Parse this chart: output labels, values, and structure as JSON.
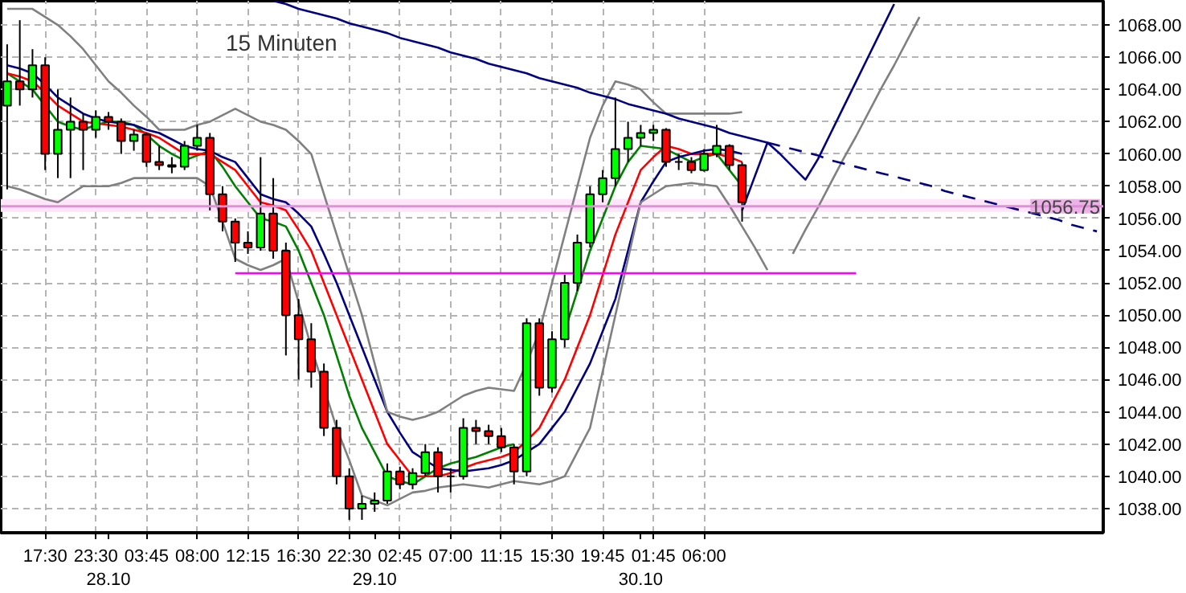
{
  "chart_data": {
    "type": "candlestick",
    "title": "15 Minuten",
    "categories": [
      null,
      null,
      null,
      "17:30",
      null,
      null,
      null,
      "23:30",
      "\n28.10",
      null,
      null,
      "03:45",
      null,
      null,
      null,
      "08:00",
      null,
      null,
      null,
      "12:15",
      null,
      null,
      null,
      "16:30",
      null,
      null,
      null,
      "22:30",
      null,
      "\n29.10",
      null,
      "02:45",
      null,
      null,
      null,
      "07:00",
      null,
      null,
      null,
      "11:15",
      null,
      null,
      null,
      "15:30",
      null,
      null,
      null,
      "19:45",
      null,
      null,
      "\n30.10",
      "01:45",
      null,
      null,
      null,
      "06:00",
      null,
      null,
      null,
      null,
      null,
      null,
      null,
      null,
      null,
      null,
      null,
      null,
      null,
      null,
      null,
      null,
      null,
      null,
      null,
      null,
      null,
      null,
      null,
      null,
      null,
      null,
      null,
      null,
      null,
      null,
      null
    ],
    "ohlc": [
      [
        1063,
        1066.8,
        1057.8,
        1064.5
      ],
      [
        1064.5,
        1068.3,
        1063,
        1064
      ],
      [
        1064,
        1066.5,
        1063.5,
        1065.5
      ],
      [
        1065.5,
        1066,
        1059,
        1060
      ],
      [
        1060,
        1064,
        1058.5,
        1061.5
      ],
      [
        1061.5,
        1063.5,
        1058.5,
        1062
      ],
      [
        1062,
        1062.5,
        1059,
        1061.5
      ],
      [
        1061.5,
        1062.7,
        1061,
        1062.3
      ],
      [
        1062.3,
        1062.6,
        1061.5,
        1062
      ],
      [
        1062,
        1062.2,
        1060,
        1060.8
      ],
      [
        1060.8,
        1061.5,
        1060.2,
        1061.2
      ],
      [
        1061.2,
        1061.3,
        1059.2,
        1059.5
      ],
      [
        1059.5,
        1060.5,
        1059,
        1059.3
      ],
      [
        1059.3,
        1059.8,
        1058.8,
        1059.2
      ],
      [
        1059.2,
        1060.8,
        1059,
        1060.5
      ],
      [
        1060.5,
        1061.8,
        1060.2,
        1061
      ],
      [
        1061,
        1061.3,
        1056.5,
        1057.5
      ],
      [
        1057.5,
        1058,
        1055.2,
        1055.8
      ],
      [
        1055.8,
        1056,
        1053.3,
        1054.5
      ],
      [
        1054.5,
        1055.2,
        1053.8,
        1054.2
      ],
      [
        1054.2,
        1059.8,
        1054,
        1056.3
      ],
      [
        1056.3,
        1058.5,
        1053.5,
        1054
      ],
      [
        1054,
        1054.5,
        1047.5,
        1050
      ],
      [
        1050,
        1051,
        1046,
        1048.5
      ],
      [
        1048.5,
        1049.5,
        1045.5,
        1046.5
      ],
      [
        1046.5,
        1047,
        1042.5,
        1043
      ],
      [
        1043,
        1043.5,
        1039.5,
        1040
      ],
      [
        1040,
        1040.5,
        1037.3,
        1038
      ],
      [
        1038,
        1038.8,
        1037.3,
        1038.3
      ],
      [
        1038.3,
        1039,
        1037.8,
        1038.5
      ],
      [
        1038.5,
        1040.8,
        1038.3,
        1040.3
      ],
      [
        1040.3,
        1040.6,
        1039.2,
        1039.5
      ],
      [
        1039.5,
        1040.5,
        1039.2,
        1040.2
      ],
      [
        1040.2,
        1042,
        1040,
        1041.5
      ],
      [
        1041.5,
        1041.8,
        1039,
        1040
      ],
      [
        1040,
        1040.5,
        1039,
        1040
      ],
      [
        1040,
        1043.6,
        1039.8,
        1043
      ],
      [
        1043,
        1043.5,
        1042,
        1042.8
      ],
      [
        1042.8,
        1043.2,
        1042,
        1042.5
      ],
      [
        1042.5,
        1043,
        1041.5,
        1041.8
      ],
      [
        1041.8,
        1042,
        1039.5,
        1040.3
      ],
      [
        1040.3,
        1049.8,
        1040,
        1049.5
      ],
      [
        1049.5,
        1049.8,
        1045,
        1045.5
      ],
      [
        1045.5,
        1049,
        1045.2,
        1048.5
      ],
      [
        1048.5,
        1052.5,
        1048,
        1052
      ],
      [
        1052,
        1055,
        1051.5,
        1054.5
      ],
      [
        1054.5,
        1058,
        1054.2,
        1057.5
      ],
      [
        1057.5,
        1059,
        1057,
        1058.5
      ],
      [
        1058.5,
        1063.5,
        1058,
        1060.3
      ],
      [
        1060.3,
        1062,
        1059.5,
        1061
      ],
      [
        1061,
        1061.8,
        1060.5,
        1061.3
      ],
      [
        1061.3,
        1061.8,
        1060.8,
        1061.5
      ],
      [
        1061.5,
        1061.6,
        1059.2,
        1059.5
      ],
      [
        1059.5,
        1060,
        1059,
        1059.5
      ],
      [
        1059.5,
        1059.8,
        1058.8,
        1059
      ],
      [
        1059,
        1060.3,
        1058.9,
        1060
      ],
      [
        1060,
        1061.8,
        1059.8,
        1060.5
      ],
      [
        1060.5,
        1060.6,
        1059,
        1059.3
      ],
      [
        1059.3,
        1059.5,
        1055.8,
        1057
      ],
      null,
      null,
      null,
      null,
      null,
      null,
      null,
      null,
      null,
      null,
      null,
      null,
      null,
      null,
      null,
      null,
      null,
      null,
      null,
      null,
      null,
      null,
      null,
      null,
      null,
      null,
      null,
      null
    ],
    "series": [
      {
        "type": "line",
        "color": "#008000",
        "values": [
          1065,
          1064.5,
          1064,
          1063,
          1062,
          1061.7,
          1061.5,
          1061.8,
          1062,
          1062,
          1061.8,
          1061.2,
          1060.5,
          1060,
          1059.6,
          1059.9,
          1060.2,
          1059.2,
          1058,
          1057,
          1056,
          1055.8,
          1055.5,
          1054,
          1052,
          1050,
          1047.5,
          1045,
          1043,
          1041.5,
          1040,
          1039.7,
          1039.5,
          1040,
          1040.5,
          1040.8,
          1041,
          1041.2,
          1041.5,
          1041.8,
          1042,
          null,
          null,
          null,
          1049,
          1051.5,
          1054,
          1056,
          1058,
          1059.5,
          1060.5,
          1060.4,
          1060.3,
          1059.9,
          1059.5,
          1059.8,
          1060,
          1059,
          1058,
          null,
          null,
          null,
          null,
          null,
          null,
          null,
          null,
          null,
          null,
          null,
          null,
          null,
          null,
          null,
          null,
          null,
          null,
          null,
          null,
          null,
          null,
          null,
          null,
          null,
          null,
          null,
          null
        ]
      },
      {
        "type": "line",
        "color": "#ff0000",
        "values": [
          1065,
          1064.8,
          1064.5,
          1063.8,
          1063,
          1062.5,
          1062,
          1061.9,
          1061.8,
          1061.7,
          1061.5,
          1061.3,
          1061,
          1060.5,
          1060,
          1060,
          1060,
          1059.5,
          1059,
          1058,
          1057,
          1056.8,
          1056.5,
          1055.3,
          1054,
          1052,
          1050,
          1048,
          1046,
          1044,
          1042,
          1041,
          1040,
          1040,
          1040,
          1040.2,
          1040.5,
          1040.8,
          1041,
          1041.2,
          1041.5,
          1042.2,
          1043,
          1044.5,
          1046,
          1048,
          1050,
          1052.5,
          1055,
          1057,
          1059,
          1059.8,
          1060.5,
          1060.3,
          1060,
          1060,
          1060,
          1059.8,
          1059.5,
          null,
          null,
          null,
          null,
          null,
          null,
          null,
          null,
          null,
          null,
          null,
          null,
          null,
          null,
          null,
          null,
          null,
          null,
          null,
          null,
          null,
          null,
          null,
          null,
          null,
          null,
          null,
          null
        ]
      },
      {
        "type": "line",
        "color": "#000080",
        "values": [
          1065.5,
          1065.3,
          1065,
          1064.3,
          1063.5,
          1063,
          1062.5,
          1062.2,
          1062,
          1061.9,
          1061.8,
          1061.5,
          1061.3,
          1060.9,
          1060.5,
          1060.3,
          1060.2,
          1059.8,
          1059.5,
          1058.5,
          1057.5,
          1057.2,
          1057,
          1056.3,
          1055.5,
          1053.8,
          1052,
          1050,
          1048,
          1046,
          1044,
          1042.7,
          1041.5,
          1041,
          1040.5,
          1040.4,
          1040.3,
          1040.4,
          1040.5,
          1040.7,
          1041,
          1041.5,
          1042,
          1043,
          1044,
          1045.5,
          1047,
          1049,
          1051,
          1054,
          1057,
          1058.3,
          1059.5,
          1059.8,
          1060,
          1060.2,
          1060.3,
          1060.2,
          1060,
          null,
          null,
          null,
          null,
          null,
          null,
          null,
          null,
          null,
          null,
          null,
          null,
          null,
          null,
          null,
          null,
          null,
          null,
          null,
          null,
          null,
          null,
          null,
          null,
          null,
          null,
          null,
          null
        ]
      },
      {
        "type": "line",
        "color": "#808080",
        "values": [
          1069,
          1069,
          1069,
          1068.5,
          1068,
          1067.3,
          1066.5,
          1065.5,
          1064.5,
          1063.8,
          1063,
          1062.3,
          1061.5,
          1061.5,
          1061.5,
          1061.8,
          1062,
          1062.4,
          1062.8,
          1062.4,
          1062,
          1061.8,
          1061.5,
          1060.8,
          1060,
          1057.5,
          1055,
          1052.5,
          1050,
          1047,
          1044,
          1043.7,
          1043.5,
          1043.7,
          1044,
          1044.5,
          1045,
          1045.3,
          1045.5,
          1045.4,
          1045.3,
          1047,
          1049,
          1052,
          1055,
          1058,
          1061,
          1063,
          1064.5,
          1064.3,
          1064,
          1063.2,
          1062.5,
          1062.5,
          1062.5,
          1062.5,
          1062.5,
          1062.5,
          1062.6,
          null,
          null,
          null,
          null,
          null,
          null,
          null,
          null,
          null,
          null,
          null,
          null,
          null,
          null,
          null,
          null,
          null,
          null,
          null,
          null,
          null,
          null,
          null,
          null,
          null,
          null,
          null,
          null
        ]
      },
      {
        "type": "line",
        "color": "#808080",
        "values": [
          1058,
          1057.8,
          1057.5,
          1057.2,
          1057,
          1057.5,
          1058,
          1058,
          1058,
          1058.2,
          1058.5,
          1058.5,
          1058.5,
          1058.5,
          1058.5,
          1058.5,
          1058,
          1055.8,
          1053.5,
          1053.1,
          1052.8,
          1053.1,
          1053.5,
          1050.8,
          1048,
          1045.5,
          1043,
          1041,
          1038.8,
          1038.5,
          1038.2,
          1038.6,
          1039,
          1039.1,
          1039.3,
          1039.4,
          1039.5,
          1039.4,
          1039.3,
          1039.5,
          1039.7,
          1039.6,
          1039.5,
          1039.7,
          1040,
          1041.5,
          1043,
          1046.5,
          1050,
          1053.5,
          1057,
          1057.5,
          1058,
          1058.1,
          1058.2,
          1058.1,
          1058,
          1056.8,
          1055.5,
          1054.2,
          1052.8,
          null,
          null,
          null,
          null,
          null,
          null,
          null,
          null,
          null,
          null,
          null,
          null,
          null,
          null,
          null,
          null,
          null,
          null,
          null,
          null,
          null,
          null,
          null,
          null,
          null,
          null
        ]
      },
      {
        "type": "line",
        "color": "#808080",
        "values": [
          null,
          null,
          null,
          null,
          null,
          null,
          null,
          null,
          null,
          null,
          null,
          null,
          null,
          null,
          null,
          null,
          null,
          null,
          null,
          null,
          null,
          null,
          null,
          null,
          null,
          null,
          null,
          null,
          null,
          null,
          null,
          null,
          null,
          null,
          null,
          null,
          null,
          null,
          null,
          null,
          null,
          null,
          null,
          null,
          null,
          null,
          null,
          null,
          null,
          null,
          null,
          null,
          null,
          null,
          null,
          null,
          null,
          null,
          null,
          null,
          null,
          null,
          1053.8,
          1055.3,
          1056.7,
          1058.2,
          1059.7,
          1061.1,
          1062.6,
          1064.1,
          1065.5,
          1067,
          1068.5,
          null,
          null,
          null,
          null,
          null,
          null,
          null,
          null,
          null,
          null,
          null,
          null,
          null,
          null
        ]
      },
      {
        "type": "line",
        "color": "#ff00ff",
        "values": [
          null,
          null,
          null,
          null,
          null,
          null,
          null,
          null,
          null,
          null,
          null,
          null,
          null,
          null,
          null,
          null,
          null,
          null,
          1052.6,
          1052.6,
          1052.6,
          1052.6,
          1052.6,
          1052.6,
          1052.6,
          1052.6,
          1052.6,
          1052.6,
          1052.6,
          1052.6,
          1052.6,
          1052.6,
          1052.6,
          1052.6,
          1052.6,
          1052.6,
          1052.6,
          1052.6,
          1052.6,
          1052.6,
          1052.6,
          1052.6,
          1052.6,
          1052.6,
          1052.6,
          1052.6,
          1052.6,
          1052.6,
          1052.6,
          1052.6,
          1052.6,
          1052.6,
          1052.6,
          1052.6,
          1052.6,
          1052.6,
          1052.6,
          1052.6,
          1052.6,
          1052.6,
          1052.6,
          1052.6,
          1052.6,
          1052.6,
          1052.6,
          1052.6,
          1052.6,
          1052.6,
          null,
          null,
          null,
          null,
          null,
          null,
          null,
          null,
          null,
          null,
          null,
          null,
          null,
          null,
          null,
          null,
          null,
          null,
          null
        ]
      },
      {
        "type": "line",
        "color": "#000080",
        "values": [
          null,
          null,
          null,
          null,
          null,
          null,
          null,
          null,
          null,
          null,
          null,
          null,
          null,
          null,
          null,
          null,
          null,
          null,
          null,
          null,
          null,
          1069.5,
          1069.3,
          1069.0,
          1068.8,
          1068.6,
          1068.4,
          1068.1,
          1067.9,
          1067.7,
          1067.5,
          1067.2,
          1067.0,
          1066.8,
          1066.6,
          1066.3,
          1066.1,
          1065.9,
          1065.6,
          1065.4,
          1065.2,
          1065.0,
          1064.7,
          1064.5,
          1064.3,
          1064.1,
          1063.8,
          1063.6,
          1063.4,
          1063.1,
          1062.9,
          1062.7,
          1062.5,
          1062.2,
          1062.0,
          1061.8,
          1061.6,
          1061.3,
          1061.1,
          1060.9,
          1060.7,
          null,
          null,
          null,
          null,
          null,
          null,
          null,
          null,
          null,
          null,
          null,
          null,
          null,
          null,
          null,
          null,
          null,
          null,
          null,
          null,
          null,
          null,
          null,
          null,
          null,
          null
        ]
      },
      {
        "type": "line",
        "color": "#000080",
        "line_style": "dashed",
        "values": [
          null,
          null,
          null,
          null,
          null,
          null,
          null,
          null,
          null,
          null,
          null,
          null,
          null,
          null,
          null,
          null,
          null,
          null,
          null,
          null,
          null,
          null,
          null,
          null,
          null,
          null,
          null,
          null,
          null,
          null,
          null,
          null,
          null,
          null,
          null,
          null,
          null,
          null,
          null,
          null,
          null,
          null,
          null,
          null,
          null,
          null,
          null,
          null,
          null,
          null,
          null,
          null,
          null,
          null,
          null,
          null,
          null,
          null,
          null,
          null,
          1060.7,
          1060.5,
          1060.3,
          1060.1,
          1059.9,
          1059.6,
          1059.4,
          1059.2,
          1059.0,
          1058.8,
          1058.6,
          1058.4,
          1058.2,
          1058.0,
          1057.7,
          1057.5,
          1057.3,
          1057.1,
          1056.9,
          1056.7,
          1056.5,
          1056.3,
          1056.1,
          1055.9,
          1055.6,
          1055.4,
          1055.2
        ]
      },
      {
        "type": "line",
        "color": "#000080",
        "values": [
          null,
          null,
          null,
          null,
          null,
          null,
          null,
          null,
          null,
          null,
          null,
          null,
          null,
          null,
          null,
          null,
          null,
          null,
          null,
          null,
          null,
          null,
          null,
          null,
          null,
          null,
          null,
          null,
          null,
          null,
          null,
          null,
          null,
          null,
          null,
          null,
          null,
          null,
          null,
          null,
          null,
          null,
          null,
          null,
          null,
          null,
          null,
          null,
          null,
          null,
          null,
          null,
          null,
          null,
          null,
          null,
          null,
          null,
          1056.5,
          1058.6,
          1060.7,
          1060,
          1059.2,
          1058.4,
          1059.7,
          1061.3,
          1062.9,
          1064.5,
          1066.1,
          1067.7,
          1069.3,
          null,
          null,
          null,
          null,
          null,
          null,
          null,
          null,
          null,
          null,
          null,
          null,
          null,
          null,
          null,
          null
        ]
      }
    ],
    "ref_lines": [
      {
        "axis": "y",
        "value": 1056.75,
        "label": "1056.75",
        "color": "#e090d8"
      }
    ],
    "bands": [
      {
        "axis": "y",
        "from": 1056.4,
        "to": 1057.2,
        "color": "#ffe4fa"
      }
    ],
    "ylim": [
      1036.5,
      1069.5
    ],
    "yticks": [
      {
        "value": 1038,
        "label": "1038.00"
      },
      {
        "value": 1040,
        "label": "1040.00"
      },
      {
        "value": 1042,
        "label": "1042.00"
      },
      {
        "value": 1044,
        "label": "1044.00"
      },
      {
        "value": 1046,
        "label": "1046.00"
      },
      {
        "value": 1048,
        "label": "1048.00"
      },
      {
        "value": 1050,
        "label": "1050.00"
      },
      {
        "value": 1052,
        "label": "1052.00"
      },
      {
        "value": 1054,
        "label": "1054.00"
      },
      {
        "value": 1056,
        "label": "1056.00"
      },
      {
        "value": 1058,
        "label": "1058.00"
      },
      {
        "value": 1060,
        "label": "1060.00"
      },
      {
        "value": 1062,
        "label": "1062.00"
      },
      {
        "value": 1064,
        "label": "1064.00"
      },
      {
        "value": 1066,
        "label": "1066.00"
      },
      {
        "value": 1068,
        "label": "1068.00"
      }
    ],
    "grid": true
  }
}
